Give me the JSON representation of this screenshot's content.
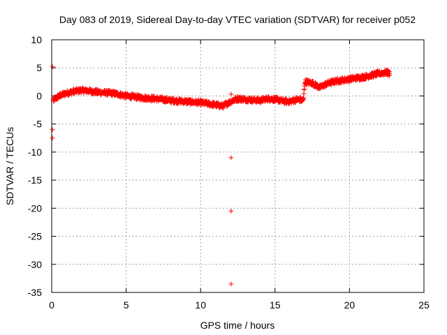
{
  "chart_data": {
    "type": "scatter",
    "title": "Day 083 of 2019, Sidereal Day-to-day VTEC variation (SDTVAR) for receiver p052",
    "xlabel": "GPS time / hours",
    "ylabel": "SDTVAR / TECUs",
    "xlim": [
      0,
      25
    ],
    "ylim": [
      -35,
      10
    ],
    "grid": true,
    "x_ticks": [
      0,
      5,
      10,
      15,
      20,
      25
    ],
    "y_ticks": [
      10,
      5,
      0,
      -5,
      -10,
      -15,
      -20,
      -25,
      -30,
      -35
    ],
    "x_tick_labels": [
      "0",
      "5",
      "10",
      "15",
      "20",
      "25"
    ],
    "y_tick_labels": [
      "10",
      "5",
      "0",
      "-5",
      "-10",
      "-15",
      "-20",
      "-25",
      "-30",
      "-35"
    ],
    "marker": "+",
    "series": [
      {
        "name": "SDTVAR",
        "color": "#ff0000",
        "trend": [
          [
            0.1,
            -0.8
          ],
          [
            0.5,
            0.0
          ],
          [
            1.0,
            0.5
          ],
          [
            1.5,
            0.8
          ],
          [
            2.0,
            1.0
          ],
          [
            2.5,
            0.9
          ],
          [
            3.0,
            0.7
          ],
          [
            3.5,
            0.6
          ],
          [
            4.0,
            0.5
          ],
          [
            4.5,
            0.3
          ],
          [
            5.0,
            0.0
          ],
          [
            6.0,
            -0.3
          ],
          [
            7.0,
            -0.5
          ],
          [
            8.0,
            -0.8
          ],
          [
            9.0,
            -1.0
          ],
          [
            10.0,
            -1.2
          ],
          [
            10.8,
            -1.5
          ],
          [
            11.5,
            -1.8
          ],
          [
            12.0,
            -1.0
          ],
          [
            12.5,
            -0.5
          ],
          [
            13.0,
            -0.6
          ],
          [
            13.5,
            -0.7
          ],
          [
            14.0,
            -0.8
          ],
          [
            14.5,
            -0.5
          ],
          [
            15.0,
            -0.6
          ],
          [
            15.5,
            -0.9
          ],
          [
            16.0,
            -1.0
          ],
          [
            16.5,
            -0.6
          ],
          [
            16.9,
            -0.8
          ],
          [
            17.0,
            2.5
          ],
          [
            17.5,
            2.3
          ],
          [
            18.0,
            1.5
          ],
          [
            18.5,
            2.2
          ],
          [
            19.0,
            2.6
          ],
          [
            19.5,
            2.8
          ],
          [
            20.0,
            3.0
          ],
          [
            20.5,
            3.2
          ],
          [
            21.0,
            3.4
          ],
          [
            21.5,
            3.7
          ],
          [
            22.0,
            4.0
          ],
          [
            22.5,
            4.2
          ],
          [
            22.7,
            4.0
          ]
        ],
        "outliers": [
          [
            0.05,
            5.2
          ],
          [
            0.05,
            -6.0
          ],
          [
            0.05,
            -7.5
          ],
          [
            12.05,
            0.3
          ],
          [
            12.05,
            -11.0
          ],
          [
            12.05,
            -20.5
          ],
          [
            12.05,
            -33.5
          ]
        ]
      }
    ]
  }
}
